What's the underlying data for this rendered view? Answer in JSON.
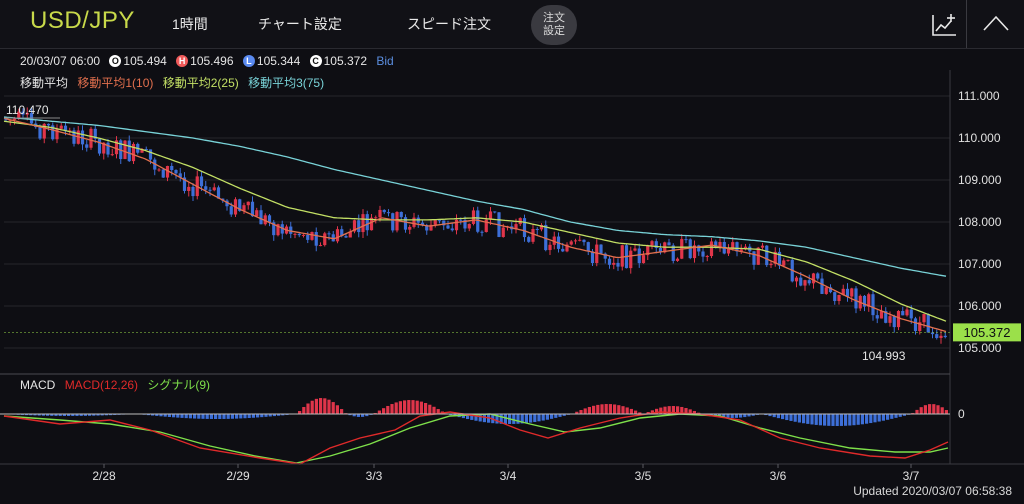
{
  "toolbar": {
    "symbol": "USD/JPY",
    "timeframe": "1時間",
    "chart_settings": "チャート設定",
    "speed_order": "スピード注文",
    "order_settings_line1": "注文",
    "order_settings_line2": "設定",
    "icons": [
      "indicator-add-icon",
      "chevron-up-icon"
    ]
  },
  "ohlc": {
    "datetime": "20/03/07 06:00",
    "open_badge": "O",
    "open": "105.494",
    "high_badge": "H",
    "high": "105.496",
    "low_badge": "L",
    "low": "105.344",
    "close_badge": "C",
    "close": "105.372",
    "price_type": "Bid"
  },
  "ma_legend": {
    "title": "移動平均",
    "ma1": "移動平均1(10)",
    "ma2": "移動平均2(25)",
    "ma3": "移動平均3(75)"
  },
  "macd_legend": {
    "title": "MACD",
    "macd": "MACD(12,26)",
    "signal": "シグナル(9)"
  },
  "colors": {
    "up": "#e0354a",
    "down": "#3d6fd8",
    "ma1": "#e3704e",
    "ma2": "#c3e065",
    "ma3": "#79d3d8",
    "macd_line": "#e02a2a",
    "signal_line": "#7ee04a",
    "current_price_bg": "#9be04a"
  },
  "price_axis": {
    "labels": [
      "111.000",
      "110.000",
      "109.000",
      "108.000",
      "107.000",
      "106.000",
      "105.000"
    ],
    "current_price": "105.372"
  },
  "annotations": {
    "high_label": "110.470",
    "low_label": "104.993"
  },
  "macd_axis": {
    "zero_label": "0"
  },
  "date_axis": [
    "2/28",
    "2/29",
    "3/3",
    "3/4",
    "3/5",
    "3/6",
    "3/7"
  ],
  "footer": {
    "updated": "Updated  2020/03/07 06:58:38"
  },
  "chart_data": {
    "type": "candlestick",
    "ylim": [
      104.8,
      111.3
    ],
    "ma_trend": {
      "ma1_key": [
        110.47,
        110.2,
        109.9,
        109.5,
        108.9,
        108.3,
        107.8,
        107.6,
        108.1,
        107.9,
        108.05,
        107.8,
        107.4,
        107.15,
        107.3,
        107.45,
        107.2,
        106.7,
        106.15,
        105.7,
        105.38
      ],
      "ma2_key": [
        110.4,
        110.25,
        110.0,
        109.7,
        109.3,
        108.8,
        108.35,
        108.1,
        108.05,
        108.05,
        108.1,
        108.0,
        107.75,
        107.5,
        107.4,
        107.4,
        107.35,
        107.05,
        106.6,
        106.05,
        105.62
      ],
      "ma3_key": [
        110.5,
        110.4,
        110.3,
        110.15,
        110.0,
        109.8,
        109.55,
        109.25,
        109.0,
        108.75,
        108.5,
        108.3,
        108.0,
        107.8,
        107.7,
        107.65,
        107.55,
        107.4,
        107.15,
        106.9,
        106.7
      ]
    },
    "macd_hist_profile": "negative to 2/29, positive around 3/2-3/3, negative 3/3-3/5, positive 3/5 (late), negative 3/6, positive at 3/7"
  }
}
